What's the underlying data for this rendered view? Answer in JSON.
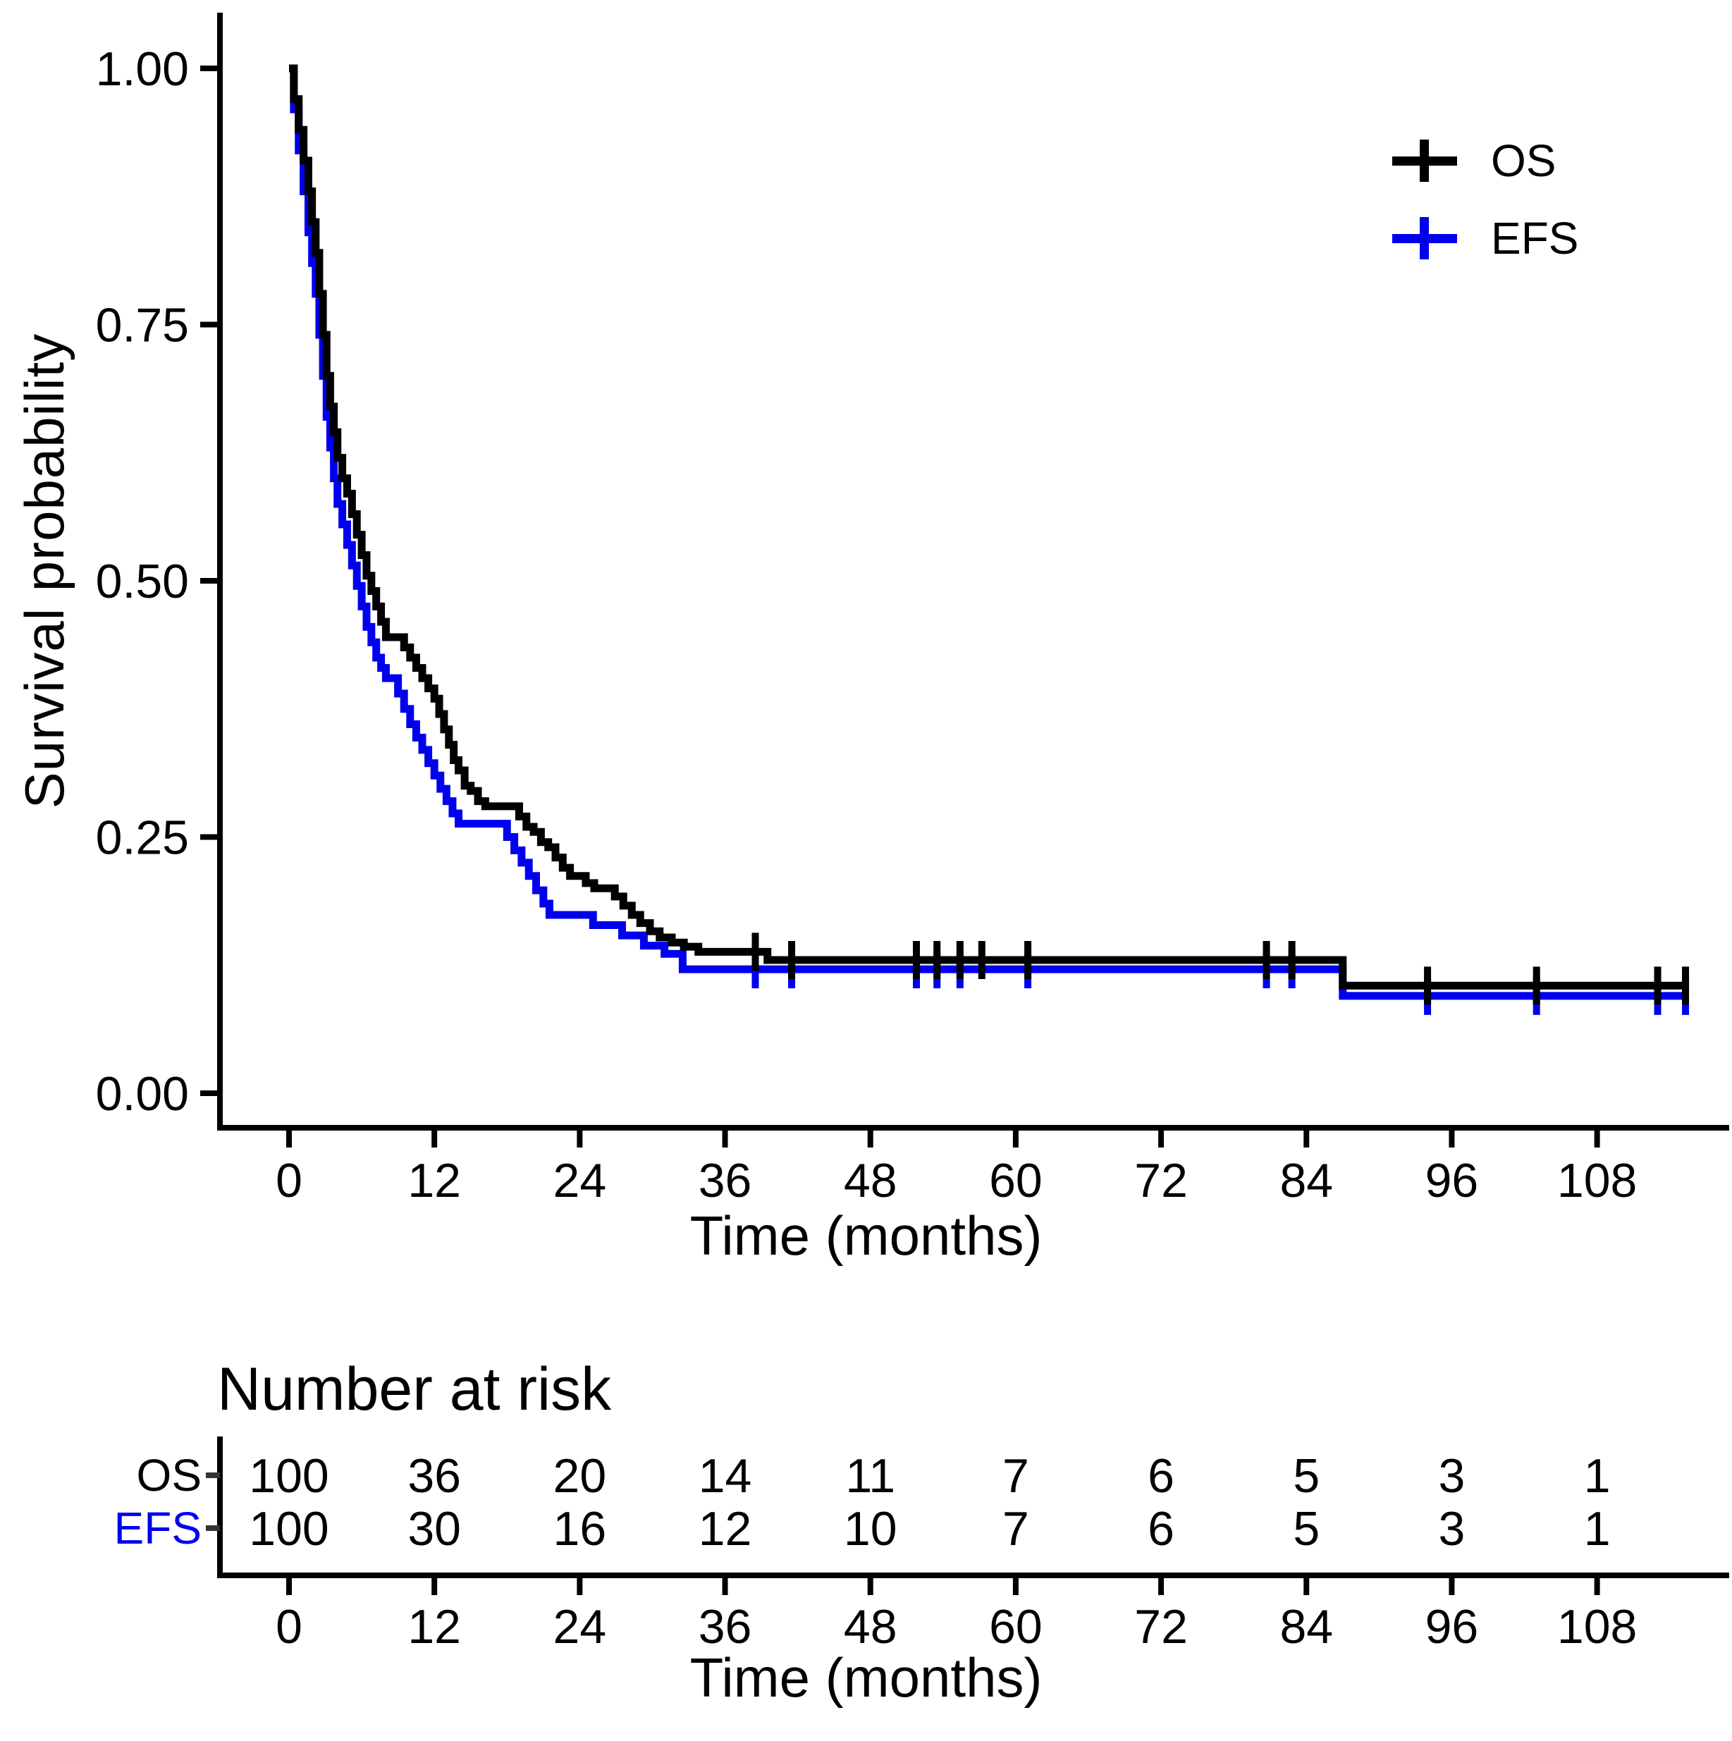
{
  "colors": {
    "os": "#000000",
    "efs": "#0000EE",
    "axis": "#000000",
    "background": "#FFFFFF"
  },
  "chart_data": {
    "type": "line",
    "subtype": "kaplan-meier-step",
    "title": "",
    "xlabel": "Time (months)",
    "ylabel": "Survival probability",
    "xlim": [
      0,
      115.5
    ],
    "ylim": [
      0,
      1
    ],
    "grid": false,
    "legend_position": "top-right",
    "x_ticks": [
      0,
      12,
      24,
      36,
      48,
      60,
      72,
      84,
      96,
      108
    ],
    "x_tick_labels": [
      "0",
      "12",
      "24",
      "36",
      "48",
      "60",
      "72",
      "84",
      "96",
      "108"
    ],
    "y_ticks": [
      0,
      0.25,
      0.5,
      0.75,
      1
    ],
    "y_tick_labels": [
      "0.00",
      "0.25",
      "0.50",
      "0.75",
      "1.00"
    ],
    "series": [
      {
        "name": "EFS",
        "color": "#0000EE",
        "end_time": 115.5,
        "steps": [
          [
            0,
            1.0
          ],
          [
            0.4,
            0.96
          ],
          [
            0.8,
            0.92
          ],
          [
            1.2,
            0.88
          ],
          [
            1.6,
            0.84
          ],
          [
            1.9,
            0.81
          ],
          [
            2.2,
            0.78
          ],
          [
            2.5,
            0.74
          ],
          [
            2.8,
            0.7
          ],
          [
            3.1,
            0.66
          ],
          [
            3.4,
            0.63
          ],
          [
            3.7,
            0.6
          ],
          [
            4.0,
            0.575
          ],
          [
            4.4,
            0.555
          ],
          [
            4.8,
            0.535
          ],
          [
            5.2,
            0.515
          ],
          [
            5.6,
            0.495
          ],
          [
            6.0,
            0.475
          ],
          [
            6.4,
            0.455
          ],
          [
            6.8,
            0.44
          ],
          [
            7.2,
            0.425
          ],
          [
            7.6,
            0.415
          ],
          [
            8.0,
            0.405
          ],
          [
            9.0,
            0.39
          ],
          [
            9.5,
            0.375
          ],
          [
            10.0,
            0.36
          ],
          [
            10.5,
            0.347
          ],
          [
            11.0,
            0.335
          ],
          [
            11.5,
            0.322
          ],
          [
            12.0,
            0.31
          ],
          [
            12.5,
            0.297
          ],
          [
            13.0,
            0.285
          ],
          [
            13.5,
            0.273
          ],
          [
            14.0,
            0.263
          ],
          [
            18.0,
            0.25
          ],
          [
            18.6,
            0.237
          ],
          [
            19.2,
            0.225
          ],
          [
            19.8,
            0.212
          ],
          [
            20.4,
            0.198
          ],
          [
            21.0,
            0.185
          ],
          [
            21.5,
            0.174
          ],
          [
            25.1,
            0.164
          ],
          [
            27.5,
            0.154
          ],
          [
            29.3,
            0.144
          ],
          [
            31.0,
            0.136
          ],
          [
            32.5,
            0.121
          ],
          [
            87.0,
            0.095
          ]
        ],
        "censors": [
          [
            38.5,
            0.121
          ],
          [
            41.5,
            0.121
          ],
          [
            51.8,
            0.121
          ],
          [
            53.5,
            0.121
          ],
          [
            55.4,
            0.121
          ],
          [
            61.0,
            0.121
          ],
          [
            80.7,
            0.121
          ],
          [
            82.8,
            0.121
          ],
          [
            94.0,
            0.095
          ],
          [
            103.0,
            0.095
          ],
          [
            113.0,
            0.095
          ],
          [
            115.3,
            0.095
          ]
        ]
      },
      {
        "name": "OS",
        "color": "#000000",
        "end_time": 115.5,
        "steps": [
          [
            0,
            1.0
          ],
          [
            0.4,
            0.97
          ],
          [
            0.8,
            0.94
          ],
          [
            1.2,
            0.91
          ],
          [
            1.6,
            0.88
          ],
          [
            1.9,
            0.85
          ],
          [
            2.2,
            0.82
          ],
          [
            2.5,
            0.78
          ],
          [
            2.8,
            0.74
          ],
          [
            3.1,
            0.7
          ],
          [
            3.4,
            0.67
          ],
          [
            3.7,
            0.645
          ],
          [
            4.0,
            0.62
          ],
          [
            4.4,
            0.6
          ],
          [
            4.8,
            0.585
          ],
          [
            5.2,
            0.565
          ],
          [
            5.6,
            0.545
          ],
          [
            6.0,
            0.525
          ],
          [
            6.4,
            0.505
          ],
          [
            6.8,
            0.49
          ],
          [
            7.2,
            0.475
          ],
          [
            7.6,
            0.46
          ],
          [
            8.0,
            0.445
          ],
          [
            9.5,
            0.435
          ],
          [
            10.0,
            0.425
          ],
          [
            10.5,
            0.415
          ],
          [
            11.0,
            0.405
          ],
          [
            11.5,
            0.395
          ],
          [
            12.0,
            0.385
          ],
          [
            12.4,
            0.37
          ],
          [
            12.8,
            0.355
          ],
          [
            13.2,
            0.34
          ],
          [
            13.6,
            0.325
          ],
          [
            14.0,
            0.315
          ],
          [
            14.5,
            0.3
          ],
          [
            15.0,
            0.295
          ],
          [
            15.6,
            0.285
          ],
          [
            16.2,
            0.28
          ],
          [
            19.0,
            0.27
          ],
          [
            19.6,
            0.26
          ],
          [
            20.2,
            0.255
          ],
          [
            20.8,
            0.245
          ],
          [
            21.4,
            0.24
          ],
          [
            22.0,
            0.23
          ],
          [
            22.6,
            0.22
          ],
          [
            23.2,
            0.212
          ],
          [
            24.5,
            0.205
          ],
          [
            25.2,
            0.2
          ],
          [
            26.9,
            0.192
          ],
          [
            27.6,
            0.183
          ],
          [
            28.3,
            0.174
          ],
          [
            29.0,
            0.166
          ],
          [
            29.8,
            0.158
          ],
          [
            30.6,
            0.152
          ],
          [
            31.6,
            0.147
          ],
          [
            32.6,
            0.143
          ],
          [
            33.8,
            0.138
          ],
          [
            39.5,
            0.13
          ],
          [
            87.0,
            0.105
          ]
        ],
        "censors": [
          [
            38.5,
            0.138
          ],
          [
            41.5,
            0.13
          ],
          [
            51.8,
            0.13
          ],
          [
            53.5,
            0.13
          ],
          [
            55.4,
            0.13
          ],
          [
            57.2,
            0.13
          ],
          [
            61.0,
            0.13
          ],
          [
            80.7,
            0.13
          ],
          [
            82.8,
            0.13
          ],
          [
            94.0,
            0.105
          ],
          [
            103.0,
            0.105
          ],
          [
            113.0,
            0.105
          ],
          [
            115.3,
            0.105
          ]
        ]
      }
    ]
  },
  "legend": {
    "items": [
      {
        "label": "OS",
        "color": "#000000"
      },
      {
        "label": "EFS",
        "color": "#0000EE"
      }
    ]
  },
  "risk_table": {
    "title": "Number at risk",
    "xlabel": "Time (months)",
    "times": [
      0,
      12,
      24,
      36,
      48,
      60,
      72,
      84,
      96,
      108
    ],
    "time_labels": [
      "0",
      "12",
      "24",
      "36",
      "48",
      "60",
      "72",
      "84",
      "96",
      "108"
    ],
    "rows": [
      {
        "label": "OS",
        "color": "#000000",
        "values": [
          "100",
          "36",
          "20",
          "14",
          "11",
          "7",
          "6",
          "5",
          "3",
          "1"
        ]
      },
      {
        "label": "EFS",
        "color": "#0000EE",
        "values": [
          "100",
          "30",
          "16",
          "12",
          "10",
          "7",
          "6",
          "5",
          "3",
          "1"
        ]
      }
    ]
  }
}
